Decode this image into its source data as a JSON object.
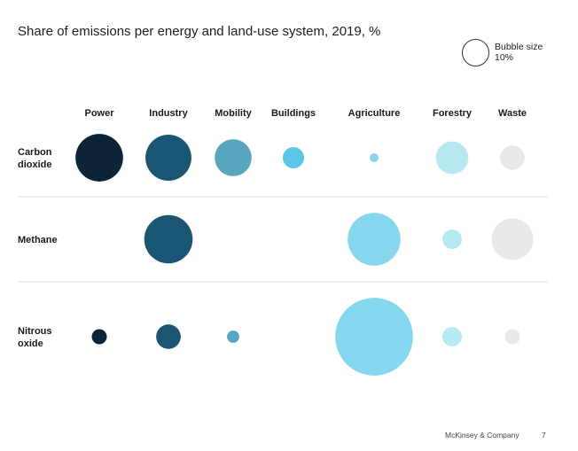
{
  "title": "Share of emissions per energy and land-use system, 2019, %",
  "legend": {
    "label_line1": "Bubble size",
    "label_line2": "10%",
    "reference_value": 10
  },
  "footer": {
    "brand": "McKinsey & Company",
    "page": "7"
  },
  "chart_data": {
    "type": "bubble-matrix",
    "title": "Share of emissions per energy and land-use system, 2019, %",
    "columns": [
      "Power",
      "Industry",
      "Mobility",
      "Buildings",
      "Agriculture",
      "Forestry",
      "Waste"
    ],
    "rows": [
      {
        "label_lines": [
          "Carbon",
          "dioxide"
        ],
        "values": [
          30,
          28,
          18,
          6,
          1,
          14,
          8
        ]
      },
      {
        "label_lines": [
          "Methane"
        ],
        "values": [
          null,
          31,
          null,
          null,
          37,
          5,
          23
        ]
      },
      {
        "label_lines": [
          "Nitrous",
          "oxide"
        ],
        "values": [
          3,
          8,
          2,
          null,
          80,
          5,
          3
        ]
      }
    ],
    "colors": {
      "Power": "#0c2338",
      "Industry": "#1a5673",
      "Mobility": "#57a6bd",
      "Buildings": "#5cc6ea",
      "Agriculture": "#86d6ee",
      "Forestry": "#b6eaf0",
      "Waste": "#e8e8ea"
    },
    "grid": "row-separators",
    "legend_position": "top-right"
  }
}
